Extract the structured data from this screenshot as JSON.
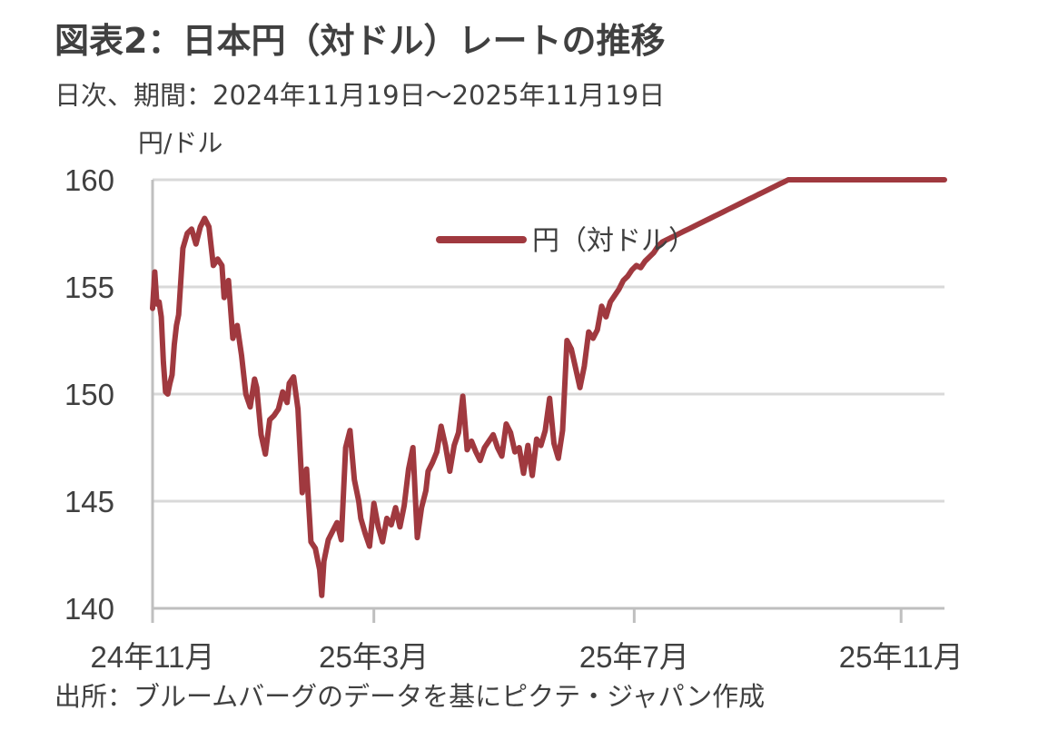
{
  "title": "図表2：日本円（対ドル）レートの推移",
  "subtitle": "日次、期間：2024年11月19日～2025年11月19日",
  "source": "出所：ブルームバーグのデータを基にピクテ・ジャパン作成",
  "colors": {
    "series": "#a0393f",
    "grid": "#d9d9d9",
    "axis": "#bfbfbf",
    "text": "#404040"
  },
  "chart_data": {
    "type": "line",
    "title": "図表2：日本円（対ドル）レートの推移",
    "ylabel": "円/ドル",
    "ylim": [
      140,
      160
    ],
    "yticks": [
      140,
      145,
      150,
      155,
      160
    ],
    "xlim": [
      0,
      365
    ],
    "xticks": [
      {
        "label": "24年11月",
        "x": 0
      },
      {
        "label": "25年3月",
        "x": 102
      },
      {
        "label": "25年7月",
        "x": 222
      },
      {
        "label": "25年11月",
        "x": 345
      }
    ],
    "grid": true,
    "legend_position": "top-center",
    "series": [
      {
        "name": "円（対ドル）",
        "x": [
          0,
          1,
          2,
          3,
          4,
          5,
          6,
          7,
          8,
          9,
          10,
          11,
          12,
          14,
          16,
          18,
          20,
          22,
          24,
          26,
          28,
          30,
          32,
          33,
          35,
          37,
          39,
          41,
          43,
          45,
          47,
          48,
          50,
          52,
          54,
          56,
          58,
          60,
          62,
          63,
          65,
          67,
          69,
          71,
          73,
          75,
          77,
          78,
          79,
          81,
          83,
          85,
          87,
          89,
          91,
          93,
          95,
          96,
          98,
          100,
          102,
          104,
          106,
          108,
          110,
          112,
          114,
          116,
          118,
          120,
          122,
          124,
          126,
          127,
          129,
          131,
          133,
          135,
          137,
          139,
          141,
          143,
          145,
          147,
          149,
          151,
          153,
          155,
          157,
          159,
          161,
          163,
          165,
          167,
          169,
          171,
          173,
          175,
          177,
          179,
          181,
          183,
          185,
          187,
          189,
          191,
          193,
          195,
          197,
          199,
          201,
          203,
          205,
          207,
          209,
          211,
          213,
          215,
          217,
          219,
          221,
          223,
          225,
          227,
          229,
          231,
          233,
          235,
          237,
          239,
          241,
          243,
          245,
          247,
          249,
          251,
          253,
          255,
          257,
          259,
          261,
          263,
          265,
          267,
          269,
          271,
          273,
          275,
          277,
          279,
          281,
          283,
          285,
          287,
          289,
          291,
          293,
          295,
          297,
          299,
          301,
          303,
          305,
          307,
          309,
          311,
          313,
          315,
          317,
          319,
          321,
          323,
          325,
          327,
          329,
          331,
          333,
          335,
          337,
          339,
          341,
          343,
          344,
          345,
          346,
          347,
          348,
          349,
          350,
          351,
          352,
          353,
          354,
          355,
          356,
          357,
          358,
          359,
          360,
          361,
          362,
          363,
          364,
          365
        ],
        "values": [
          154.0,
          155.7,
          154.2,
          154.3,
          153.6,
          151.5,
          150.1,
          150.0,
          150.5,
          150.9,
          152.3,
          153.2,
          153.7,
          156.8,
          157.5,
          157.7,
          157.0,
          157.8,
          158.2,
          157.8,
          156.0,
          156.3,
          156.0,
          154.5,
          155.3,
          152.6,
          153.2,
          151.8,
          150.0,
          149.4,
          150.7,
          150.3,
          148.1,
          147.2,
          148.8,
          149.0,
          149.3,
          150.1,
          149.6,
          150.5,
          150.8,
          149.3,
          145.4,
          146.5,
          143.1,
          142.8,
          141.8,
          140.6,
          142.2,
          143.2,
          143.6,
          144.0,
          143.2,
          147.5,
          148.3,
          146.0,
          145.0,
          144.2,
          143.5,
          142.9,
          144.9,
          143.8,
          143.1,
          144.2,
          143.9,
          144.7,
          143.8,
          144.8,
          146.5,
          147.5,
          143.3,
          144.7,
          145.5,
          146.4,
          146.8,
          147.3,
          148.5,
          147.6,
          146.4,
          147.6,
          148.2,
          149.9,
          147.4,
          147.8,
          147.3,
          146.9,
          147.5,
          147.8,
          148.1,
          147.5,
          147.1,
          148.6,
          148.2,
          147.3,
          147.5,
          146.3,
          147.6,
          146.2,
          147.9,
          147.6,
          148.3,
          149.8,
          147.7,
          147.0,
          148.3,
          152.5,
          152.1,
          151.2,
          150.3,
          151.3,
          152.9,
          152.6,
          153.0,
          154.1,
          153.6,
          154.3,
          154.6,
          154.9,
          155.3,
          155.5,
          155.8,
          156.0,
          155.9,
          156.2,
          156.4,
          156.6,
          156.9,
          157.1,
          157.2,
          157.3,
          157.4,
          157.5,
          157.6,
          157.7,
          157.8,
          157.9,
          158.0,
          158.1,
          158.2,
          158.3,
          158.4,
          158.5,
          158.6,
          158.7,
          158.8,
          158.9,
          159.0,
          159.1,
          159.2,
          159.3,
          159.4,
          159.5,
          159.6,
          159.7,
          159.8,
          159.9,
          160.0,
          160.0,
          160.0,
          160.0,
          160.0,
          160.0,
          160.0,
          160.0,
          160.0,
          160.0,
          160.0,
          160.0,
          160.0,
          160.0,
          160.0,
          160.0,
          160.0,
          160.0,
          160.0,
          160.0,
          160.0,
          160.0,
          160.0,
          160.0,
          160.0,
          160.0,
          160.0,
          160.0,
          160.0,
          160.0,
          160.0,
          160.0,
          160.0,
          160.0,
          160.0,
          160.0,
          160.0,
          160.0,
          160.0,
          160.0,
          160.0,
          160.0,
          160.0,
          160.0,
          160.0,
          160.0,
          160.0,
          160.0
        ]
      }
    ]
  }
}
